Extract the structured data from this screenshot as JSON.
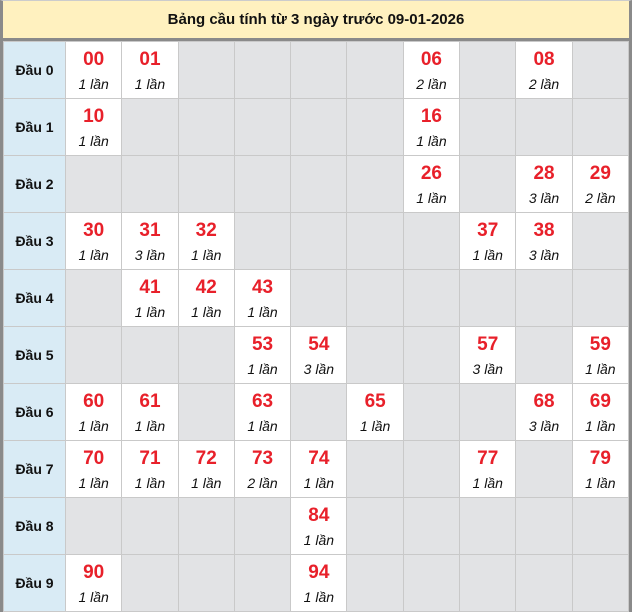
{
  "title": "Bảng cầu tính từ 3 ngày trước 09-01-2026",
  "colors": {
    "number": "#e8202a",
    "header_bg": "#fff1bf",
    "row_label_bg": "#d9ebf5",
    "empty_cell": "#e2e3e5"
  },
  "rows": [
    {
      "label": "Đầu 0",
      "cells": [
        {
          "num": "00",
          "count": "1 lần"
        },
        {
          "num": "01",
          "count": "1 lần"
        },
        null,
        null,
        null,
        null,
        {
          "num": "06",
          "count": "2 lần"
        },
        null,
        {
          "num": "08",
          "count": "2 lần"
        },
        null
      ]
    },
    {
      "label": "Đầu 1",
      "cells": [
        {
          "num": "10",
          "count": "1 lần"
        },
        null,
        null,
        null,
        null,
        null,
        {
          "num": "16",
          "count": "1 lần"
        },
        null,
        null,
        null
      ]
    },
    {
      "label": "Đầu 2",
      "cells": [
        null,
        null,
        null,
        null,
        null,
        null,
        {
          "num": "26",
          "count": "1 lần"
        },
        null,
        {
          "num": "28",
          "count": "3 lần"
        },
        {
          "num": "29",
          "count": "2 lần"
        }
      ]
    },
    {
      "label": "Đầu 3",
      "cells": [
        {
          "num": "30",
          "count": "1 lần"
        },
        {
          "num": "31",
          "count": "3 lần"
        },
        {
          "num": "32",
          "count": "1 lần"
        },
        null,
        null,
        null,
        null,
        {
          "num": "37",
          "count": "1 lần"
        },
        {
          "num": "38",
          "count": "3 lần"
        },
        null
      ]
    },
    {
      "label": "Đầu 4",
      "cells": [
        null,
        {
          "num": "41",
          "count": "1 lần"
        },
        {
          "num": "42",
          "count": "1 lần"
        },
        {
          "num": "43",
          "count": "1 lần"
        },
        null,
        null,
        null,
        null,
        null,
        null
      ]
    },
    {
      "label": "Đầu 5",
      "cells": [
        null,
        null,
        null,
        {
          "num": "53",
          "count": "1 lần"
        },
        {
          "num": "54",
          "count": "3 lần"
        },
        null,
        null,
        {
          "num": "57",
          "count": "3 lần"
        },
        null,
        {
          "num": "59",
          "count": "1 lần"
        }
      ]
    },
    {
      "label": "Đầu 6",
      "cells": [
        {
          "num": "60",
          "count": "1 lần"
        },
        {
          "num": "61",
          "count": "1 lần"
        },
        null,
        {
          "num": "63",
          "count": "1 lần"
        },
        null,
        {
          "num": "65",
          "count": "1 lần"
        },
        null,
        null,
        {
          "num": "68",
          "count": "3 lần"
        },
        {
          "num": "69",
          "count": "1 lần"
        }
      ]
    },
    {
      "label": "Đầu 7",
      "cells": [
        {
          "num": "70",
          "count": "1 lần"
        },
        {
          "num": "71",
          "count": "1 lần"
        },
        {
          "num": "72",
          "count": "1 lần"
        },
        {
          "num": "73",
          "count": "2 lần"
        },
        {
          "num": "74",
          "count": "1 lần"
        },
        null,
        null,
        {
          "num": "77",
          "count": "1 lần"
        },
        null,
        {
          "num": "79",
          "count": "1 lần"
        }
      ]
    },
    {
      "label": "Đầu 8",
      "cells": [
        null,
        null,
        null,
        null,
        {
          "num": "84",
          "count": "1 lần"
        },
        null,
        null,
        null,
        null,
        null
      ]
    },
    {
      "label": "Đầu 9",
      "cells": [
        {
          "num": "90",
          "count": "1 lần"
        },
        null,
        null,
        null,
        {
          "num": "94",
          "count": "1 lần"
        },
        null,
        null,
        null,
        null,
        null
      ]
    }
  ]
}
